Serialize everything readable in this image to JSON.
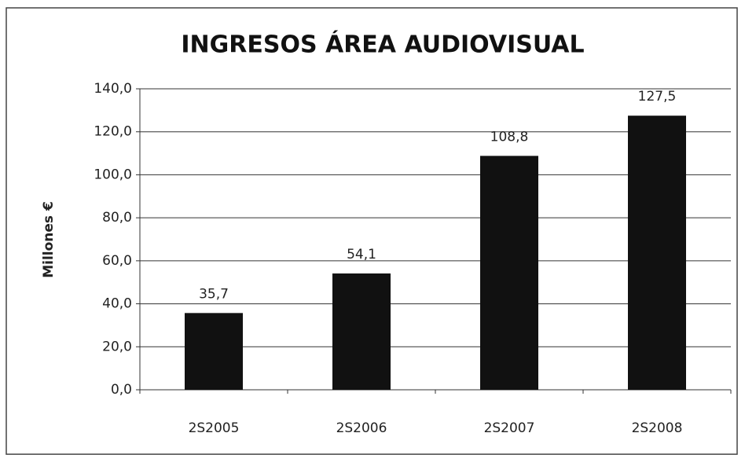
{
  "chart_data": {
    "type": "bar",
    "title": "INGRESOS ÁREA AUDIOVISUAL",
    "y_label": "Millones €",
    "categories": [
      "2S2005",
      "2S2006",
      "2S2007",
      "2S2008"
    ],
    "values": [
      35.7,
      54.1,
      108.8,
      127.5
    ],
    "value_labels": [
      "35,7",
      "54,1",
      "108,8",
      "127,5"
    ],
    "color": "#111111",
    "ylim": [
      0,
      140
    ],
    "yticks": [
      {
        "value": 0,
        "label": "0,0"
      },
      {
        "value": 20,
        "label": "20,0"
      },
      {
        "value": 40,
        "label": "40,0"
      },
      {
        "value": 60,
        "label": "60,0"
      },
      {
        "value": 80,
        "label": "80,0"
      },
      {
        "value": 100,
        "label": "100,0"
      },
      {
        "value": 120,
        "label": "120,0"
      },
      {
        "value": 140,
        "label": "140,0"
      }
    ],
    "grid": true
  }
}
